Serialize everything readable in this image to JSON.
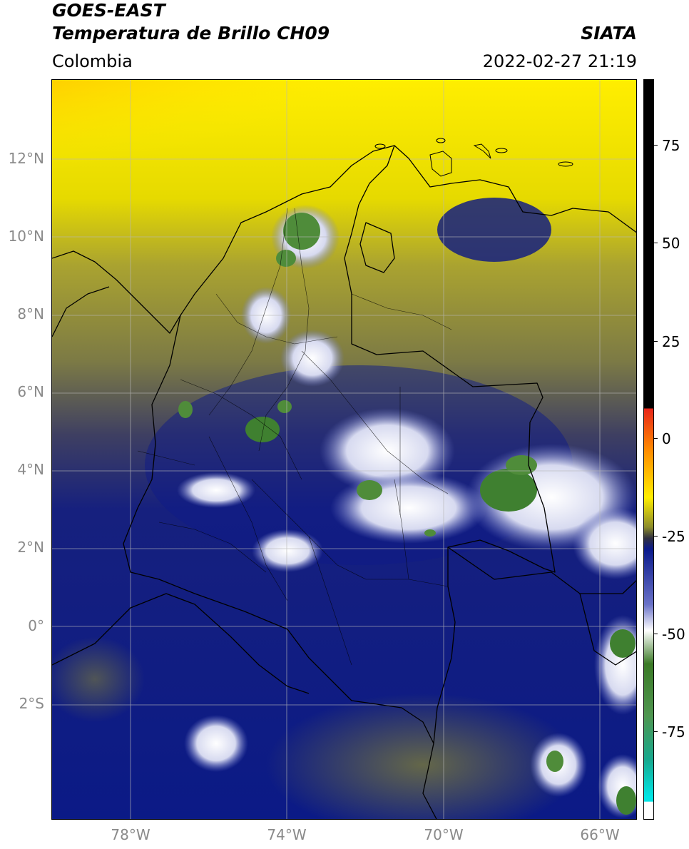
{
  "header": {
    "title_line1": "GOES-EAST",
    "title_line2": "Temperatura de Brillo CH09",
    "agency": "SIATA",
    "region": "Colombia",
    "timestamp": "2022-02-27 21:19"
  },
  "map": {
    "lat_labels": [
      "12°N",
      "10°N",
      "8°N",
      "6°N",
      "4°N",
      "2°N",
      "0°",
      "2°S"
    ],
    "lon_labels": [
      "78°W",
      "74°W",
      "70°W",
      "66°W"
    ],
    "gridline_color": "#b8b8b8",
    "border_color": "#000000"
  },
  "colorbar": {
    "tick_labels": [
      "75",
      "50",
      "25",
      "0",
      "-25",
      "-50",
      "-75"
    ],
    "colors": {
      "black": "#000000",
      "red": "#e8261a",
      "orange": "#ff8a00",
      "yellow": "#ffee00",
      "olive": "#8c8c2a",
      "navy": "#0a1a8c",
      "white": "#ffffff",
      "green": "#3b7a26",
      "teal": "#17a98f",
      "cyan": "#00e5e5"
    }
  }
}
